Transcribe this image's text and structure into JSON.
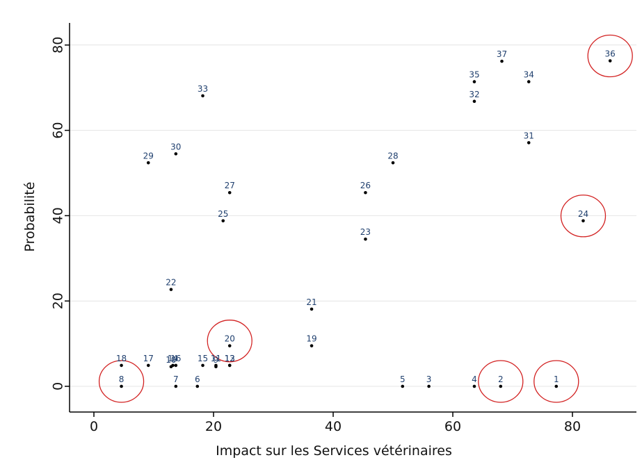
{
  "chart_data": {
    "type": "scatter",
    "title": "",
    "xlabel": "Impact sur les Services vétérinaires",
    "ylabel": "Probabilité",
    "xlim": [
      -4,
      90
    ],
    "ylim": [
      -6,
      86
    ],
    "xticks": [
      0,
      20,
      40,
      60,
      80
    ],
    "yticks": [
      0,
      20,
      40,
      60,
      80
    ],
    "grid": "horizontal",
    "colors": {
      "point": "#000000",
      "label": "#1f3f6e",
      "circle": "#d22020",
      "grid": "#e4e4e4",
      "axis": "#000000"
    },
    "points": [
      {
        "label": "1",
        "x": 77.3,
        "y": 0
      },
      {
        "label": "2",
        "x": 68.0,
        "y": 0
      },
      {
        "label": "3",
        "x": 56.0,
        "y": 0
      },
      {
        "label": "4",
        "x": 63.6,
        "y": 0
      },
      {
        "label": "5",
        "x": 51.6,
        "y": 0
      },
      {
        "label": "6",
        "x": 17.3,
        "y": 0
      },
      {
        "label": "7",
        "x": 13.7,
        "y": 0
      },
      {
        "label": "8",
        "x": 4.6,
        "y": 0
      },
      {
        "label": "9",
        "x": 20.4,
        "y": 4.6
      },
      {
        "label": "10",
        "x": 12.9,
        "y": 4.6
      },
      {
        "label": "11",
        "x": 20.4,
        "y": 4.9
      },
      {
        "label": "12",
        "x": 22.7,
        "y": 4.9
      },
      {
        "label": "13",
        "x": 22.7,
        "y": 4.9
      },
      {
        "label": "14",
        "x": 13.2,
        "y": 4.9
      },
      {
        "label": "15",
        "x": 18.2,
        "y": 4.9
      },
      {
        "label": "16",
        "x": 13.7,
        "y": 4.9
      },
      {
        "label": "17",
        "x": 9.1,
        "y": 4.9
      },
      {
        "label": "18",
        "x": 4.6,
        "y": 4.9
      },
      {
        "label": "19",
        "x": 36.4,
        "y": 9.5
      },
      {
        "label": "20",
        "x": 22.7,
        "y": 9.5
      },
      {
        "label": "21",
        "x": 36.4,
        "y": 18.1
      },
      {
        "label": "22",
        "x": 12.9,
        "y": 22.7
      },
      {
        "label": "23",
        "x": 45.4,
        "y": 34.5
      },
      {
        "label": "24",
        "x": 81.8,
        "y": 38.8
      },
      {
        "label": "25",
        "x": 21.6,
        "y": 38.8
      },
      {
        "label": "26",
        "x": 45.4,
        "y": 45.4
      },
      {
        "label": "27",
        "x": 22.7,
        "y": 45.4
      },
      {
        "label": "28",
        "x": 50.0,
        "y": 52.4
      },
      {
        "label": "29",
        "x": 9.1,
        "y": 52.4
      },
      {
        "label": "30",
        "x": 13.7,
        "y": 54.5
      },
      {
        "label": "31",
        "x": 72.7,
        "y": 57.1
      },
      {
        "label": "32",
        "x": 63.6,
        "y": 66.8
      },
      {
        "label": "33",
        "x": 18.2,
        "y": 68.1
      },
      {
        "label": "34",
        "x": 72.7,
        "y": 71.4
      },
      {
        "label": "35",
        "x": 63.6,
        "y": 71.4
      },
      {
        "label": "36",
        "x": 86.3,
        "y": 76.3
      },
      {
        "label": "37",
        "x": 68.2,
        "y": 76.2
      }
    ],
    "circled": [
      "1",
      "2",
      "8",
      "20",
      "24",
      "36"
    ]
  }
}
